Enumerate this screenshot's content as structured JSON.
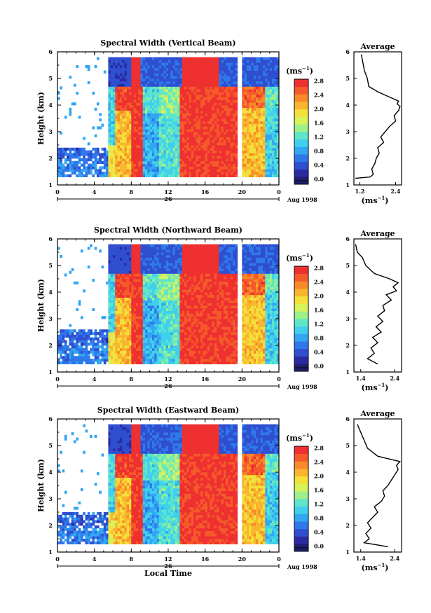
{
  "colorbar": {
    "unit_label": "(ms",
    "unit_sup": "−1",
    "unit_close": ")",
    "ticks": [
      "0.0",
      "0.4",
      "0.8",
      "1.2",
      "1.6",
      "2.0",
      "2.4",
      "2.8"
    ],
    "colors": [
      "#1f1f6e",
      "#2a2aa0",
      "#2f4fd0",
      "#2f78ea",
      "#33a6f2",
      "#3fd0ee",
      "#5fe6c8",
      "#9ef08a",
      "#d8f25a",
      "#f4e03a",
      "#f9b52e",
      "#f88a2a",
      "#f55a2a",
      "#ee3030"
    ]
  },
  "x_axis": {
    "ticks": [
      "0",
      "4",
      "8",
      "12",
      "16",
      "20",
      "0"
    ],
    "date_number": "26",
    "date_text": "Aug 1998",
    "label": "Local Time"
  },
  "y_axis": {
    "label": "Height (km)",
    "ticks": [
      "1",
      "2",
      "3",
      "4",
      "5",
      "6"
    ]
  },
  "chart_data": [
    {
      "type": "heatmap",
      "title": "Spectral Width (Vertical Beam)",
      "xlabel": "",
      "ylabel": "Height (km)",
      "xlim": [
        0,
        24
      ],
      "ylim": [
        1,
        6
      ],
      "colorbar_range": [
        0.0,
        3.0
      ],
      "colorbar_label": "(ms⁻¹)",
      "profile": {
        "title": "Average",
        "xlabel": "(ms⁻¹)",
        "x_ticks": [
          "1.2",
          "2.4"
        ],
        "xlim": [
          1.0,
          2.6
        ],
        "heights": [
          1.25,
          1.3,
          1.4,
          1.6,
          1.8,
          2.0,
          2.2,
          2.4,
          2.6,
          2.8,
          3.0,
          3.2,
          3.4,
          3.6,
          3.8,
          3.95,
          4.05,
          4.15,
          4.3,
          4.5,
          4.7,
          5.0,
          5.3,
          5.6,
          5.9
        ],
        "values": [
          1.05,
          1.55,
          1.65,
          1.6,
          1.7,
          1.75,
          1.85,
          1.8,
          2.0,
          1.9,
          2.05,
          2.2,
          2.4,
          2.35,
          2.5,
          2.55,
          2.45,
          2.5,
          2.2,
          1.8,
          1.5,
          1.45,
          1.35,
          1.3,
          1.25
        ]
      }
    },
    {
      "type": "heatmap",
      "title": "Spectral Width (Northward Beam)",
      "xlabel": "",
      "ylabel": "Height (km)",
      "xlim": [
        0,
        24
      ],
      "ylim": [
        1,
        6
      ],
      "colorbar_range": [
        0.0,
        3.0
      ],
      "colorbar_label": "(ms⁻¹)",
      "profile": {
        "title": "Average",
        "xlabel": "(ms⁻¹)",
        "x_ticks": [
          "1.4",
          "2.4"
        ],
        "xlim": [
          1.2,
          2.6
        ],
        "heights": [
          1.3,
          1.5,
          1.7,
          1.9,
          2.1,
          2.3,
          2.5,
          2.7,
          2.9,
          3.1,
          3.3,
          3.5,
          3.7,
          3.9,
          4.05,
          4.2,
          4.35,
          4.5,
          4.7,
          5.0,
          5.3,
          5.5,
          5.8
        ],
        "values": [
          1.9,
          1.6,
          1.8,
          1.7,
          1.9,
          1.75,
          2.0,
          1.85,
          2.05,
          1.9,
          2.1,
          2.05,
          2.3,
          2.15,
          2.45,
          2.35,
          2.5,
          2.25,
          1.8,
          1.55,
          1.45,
          1.3,
          1.25
        ]
      }
    },
    {
      "type": "heatmap",
      "title": "Spectral Width (Eastward Beam)",
      "xlabel": "Local Time",
      "ylabel": "Height (km)",
      "xlim": [
        0,
        24
      ],
      "ylim": [
        1,
        6
      ],
      "colorbar_range": [
        0.0,
        3.0
      ],
      "colorbar_label": "(ms⁻¹)",
      "profile": {
        "title": "Average",
        "xlabel": "(ms⁻¹)",
        "x_ticks": [
          "1.4",
          "2.4"
        ],
        "xlim": [
          1.2,
          2.6
        ],
        "heights": [
          1.2,
          1.35,
          1.5,
          1.7,
          1.9,
          2.1,
          2.3,
          2.5,
          2.7,
          2.9,
          3.1,
          3.3,
          3.5,
          3.7,
          3.9,
          4.1,
          4.25,
          4.4,
          4.6,
          4.9,
          5.2,
          5.5,
          5.8
        ],
        "values": [
          2.2,
          1.5,
          1.65,
          1.55,
          1.7,
          1.6,
          1.75,
          1.9,
          1.8,
          2.0,
          2.1,
          2.05,
          2.2,
          2.3,
          2.4,
          2.5,
          2.45,
          2.55,
          1.9,
          1.6,
          1.5,
          1.4,
          1.3
        ]
      }
    }
  ]
}
